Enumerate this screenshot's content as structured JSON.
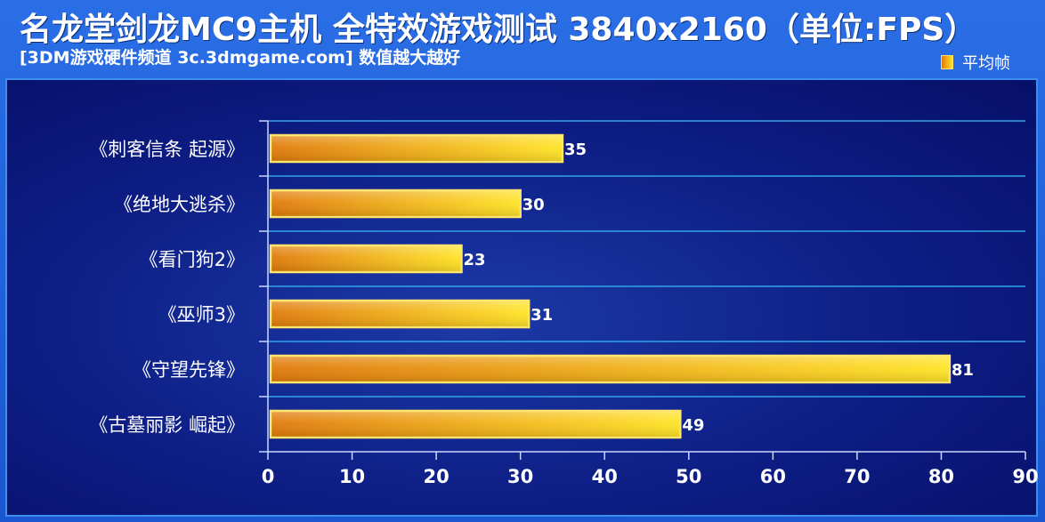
{
  "header": {
    "title": "名龙堂剑龙MC9主机 全特效游戏测试 3840x2160（单位:FPS）",
    "subtitle": "[3DM游戏硬件频道 3c.3dmgame.com] 数值越大越好"
  },
  "colors": {
    "bar_start": "#e07a0a",
    "bar_end": "#ffe326",
    "bar_border": "#ffe66a",
    "grid": "#2fa6e8",
    "axis": "#c9d8ff"
  },
  "chart_data": {
    "type": "bar",
    "orientation": "horizontal",
    "title": "名龙堂剑龙MC9主机 全特效游戏测试 3840x2160（单位:FPS）",
    "categories": [
      "《刺客信条 起源》",
      "《绝地大逃杀》",
      "《看门狗2》",
      "《巫师3》",
      "《守望先锋》",
      "《古墓丽影 崛起》"
    ],
    "series": [
      {
        "name": "平均帧",
        "values": [
          35,
          30,
          23,
          31,
          81,
          49
        ]
      }
    ],
    "xlim": [
      0,
      90
    ],
    "xticks": [
      0,
      10,
      20,
      30,
      40,
      50,
      60,
      70,
      80,
      90
    ],
    "grid": true,
    "legend_position": "top-right",
    "data_labels": true
  }
}
